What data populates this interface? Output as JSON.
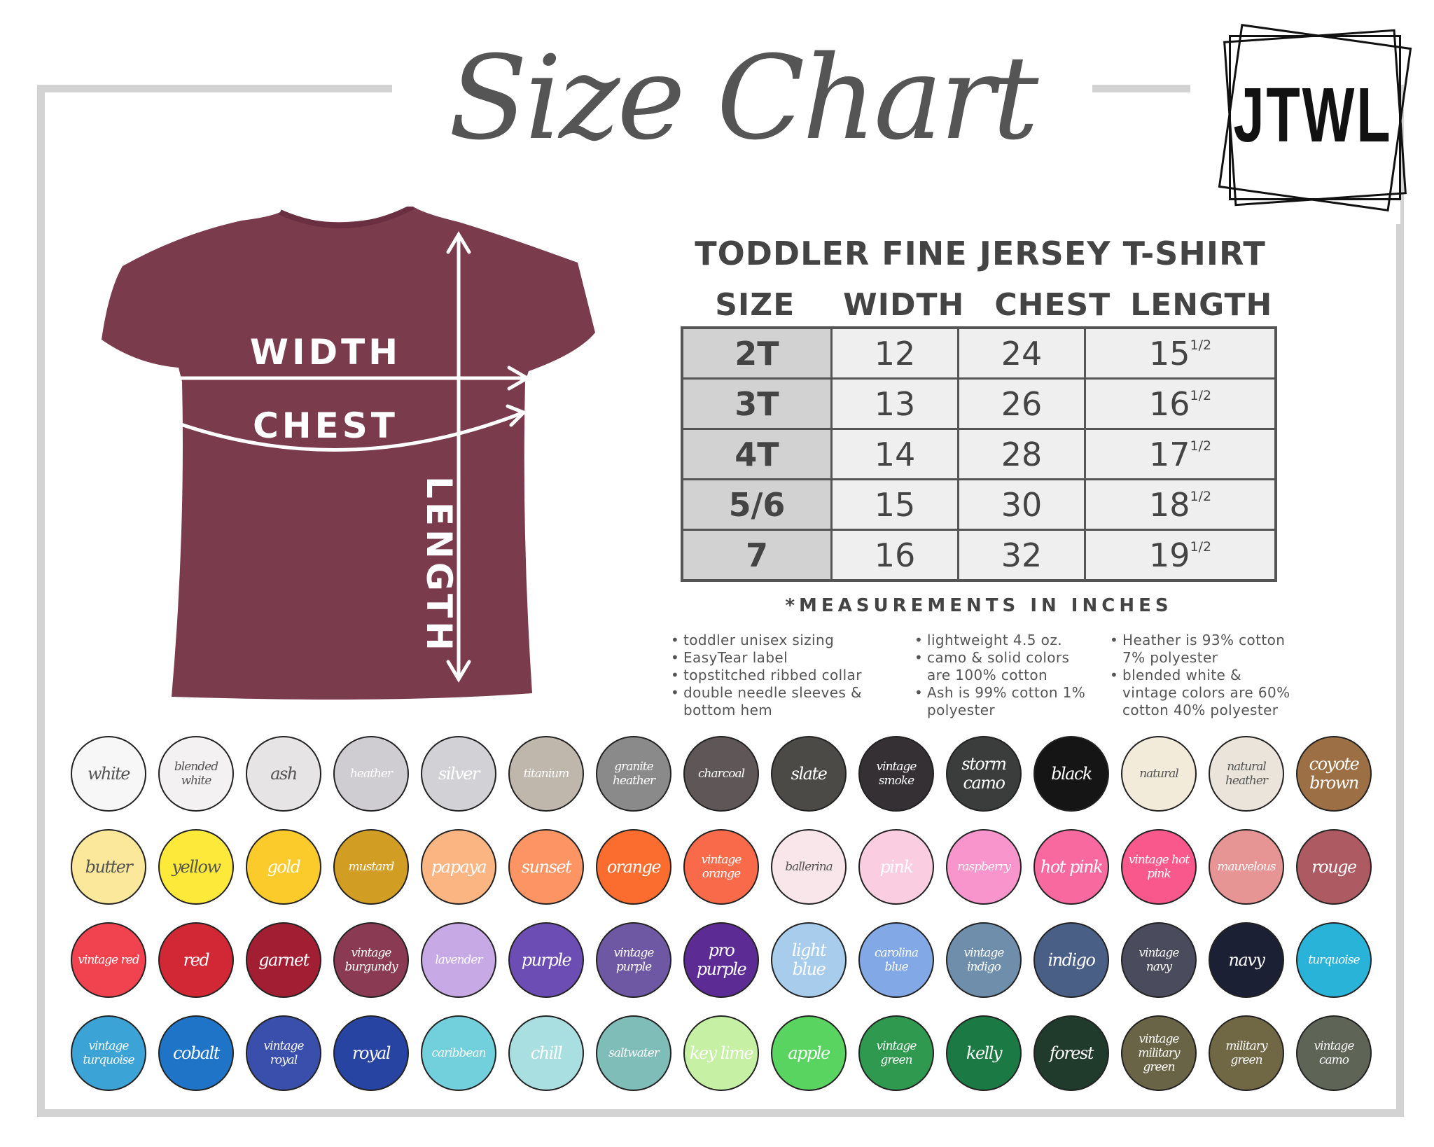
{
  "header": {
    "title": "Size Chart",
    "logo": "JTWL"
  },
  "diagram": {
    "width_label": "WIDTH",
    "chest_label": "CHEST",
    "length_label": "LENGTH",
    "shirt_color": "#7a3b4d"
  },
  "table": {
    "title": "TODDLER FINE JERSEY T-SHIRT",
    "columns": [
      "SIZE",
      "WIDTH",
      "CHEST",
      "LENGTH"
    ],
    "rows": [
      {
        "size": "2T",
        "width": "12",
        "chest": "24",
        "length": "15",
        "length_frac": "1/2"
      },
      {
        "size": "3T",
        "width": "13",
        "chest": "26",
        "length": "16",
        "length_frac": "1/2"
      },
      {
        "size": "4T",
        "width": "14",
        "chest": "28",
        "length": "17",
        "length_frac": "1/2"
      },
      {
        "size": "5/6",
        "width": "15",
        "chest": "30",
        "length": "18",
        "length_frac": "1/2"
      },
      {
        "size": "7",
        "width": "16",
        "chest": "32",
        "length": "19",
        "length_frac": "1/2"
      }
    ],
    "note": "*MEASUREMENTS IN INCHES"
  },
  "features": [
    [
      "toddler unisex sizing",
      "EasyTear label",
      "topstitched ribbed collar",
      "double needle sleeves & bottom hem"
    ],
    [
      "lightweight 4.5 oz.",
      "camo & solid colors are 100% cotton",
      "Ash is 99% cotton 1% polyester"
    ],
    [
      "Heather is 93% cotton 7% polyester",
      "blended white & vintage colors are 60% cotton 40% polyester"
    ]
  ],
  "swatches": [
    {
      "name": "white",
      "color": "#f7f7f7",
      "text": "#555"
    },
    {
      "name": "blended white",
      "color": "#f3f1f1",
      "text": "#555"
    },
    {
      "name": "ash",
      "color": "#e6e4e4",
      "text": "#555"
    },
    {
      "name": "heather",
      "color": "#cfcdd2",
      "text": "#fff"
    },
    {
      "name": "silver",
      "color": "#d2d2d6",
      "text": "#fff"
    },
    {
      "name": "titanium",
      "color": "#bfb6ac",
      "text": "#fff"
    },
    {
      "name": "granite heather",
      "color": "#8a8a8a",
      "text": "#fff"
    },
    {
      "name": "charcoal",
      "color": "#5f5757",
      "text": "#fff"
    },
    {
      "name": "slate",
      "color": "#4c4a47",
      "text": "#fff"
    },
    {
      "name": "vintage smoke",
      "color": "#343034",
      "text": "#fff"
    },
    {
      "name": "storm camo",
      "color": "#3b3d3c",
      "text": "#fff"
    },
    {
      "name": "black",
      "color": "#151515",
      "text": "#fff"
    },
    {
      "name": "natural",
      "color": "#f3ebd9",
      "text": "#555"
    },
    {
      "name": "natural heather",
      "color": "#ebe4da",
      "text": "#555"
    },
    {
      "name": "coyote brown",
      "color": "#9c6f44",
      "text": "#fff"
    },
    {
      "name": "butter",
      "color": "#fbe89a",
      "text": "#555"
    },
    {
      "name": "yellow",
      "color": "#fde93a",
      "text": "#555"
    },
    {
      "name": "gold",
      "color": "#fbcb2c",
      "text": "#fff"
    },
    {
      "name": "mustard",
      "color": "#d19d22",
      "text": "#fff"
    },
    {
      "name": "papaya",
      "color": "#fbb583",
      "text": "#fff"
    },
    {
      "name": "sunset",
      "color": "#fc9463",
      "text": "#fff"
    },
    {
      "name": "orange",
      "color": "#fb6c2f",
      "text": "#fff"
    },
    {
      "name": "vintage orange",
      "color": "#f86a4a",
      "text": "#fff"
    },
    {
      "name": "ballerina",
      "color": "#f8e6ea",
      "text": "#555"
    },
    {
      "name": "pink",
      "color": "#fbcde0",
      "text": "#fff"
    },
    {
      "name": "raspberry",
      "color": "#f895cc",
      "text": "#fff"
    },
    {
      "name": "hot pink",
      "color": "#f86a9f",
      "text": "#fff"
    },
    {
      "name": "vintage hot pink",
      "color": "#f8588b",
      "text": "#fff"
    },
    {
      "name": "mauvelous",
      "color": "#e79594",
      "text": "#fff"
    },
    {
      "name": "rouge",
      "color": "#ad5a62",
      "text": "#fff"
    },
    {
      "name": "vintage red",
      "color": "#f0434f",
      "text": "#fff"
    },
    {
      "name": "red",
      "color": "#d22836",
      "text": "#fff"
    },
    {
      "name": "garnet",
      "color": "#a11e33",
      "text": "#fff"
    },
    {
      "name": "vintage burgundy",
      "color": "#8a3a52",
      "text": "#fff"
    },
    {
      "name": "lavender",
      "color": "#c7a9e6",
      "text": "#fff"
    },
    {
      "name": "purple",
      "color": "#6b4db3",
      "text": "#fff"
    },
    {
      "name": "vintage purple",
      "color": "#6e58a3",
      "text": "#fff"
    },
    {
      "name": "pro purple",
      "color": "#5c2b93",
      "text": "#fff"
    },
    {
      "name": "light blue",
      "color": "#a8cdec",
      "text": "#fff"
    },
    {
      "name": "carolina blue",
      "color": "#82a9e6",
      "text": "#fff"
    },
    {
      "name": "vintage indigo",
      "color": "#6f8eab",
      "text": "#fff"
    },
    {
      "name": "indigo",
      "color": "#4a5f86",
      "text": "#fff"
    },
    {
      "name": "vintage navy",
      "color": "#4a4b5c",
      "text": "#fff"
    },
    {
      "name": "navy",
      "color": "#1c2034",
      "text": "#fff"
    },
    {
      "name": "turquoise",
      "color": "#2ab3d8",
      "text": "#fff"
    },
    {
      "name": "vintage turquoise",
      "color": "#3ba3d6",
      "text": "#fff"
    },
    {
      "name": "cobalt",
      "color": "#1f74c7",
      "text": "#fff"
    },
    {
      "name": "vintage royal",
      "color": "#3a4fac",
      "text": "#fff"
    },
    {
      "name": "royal",
      "color": "#2844a3",
      "text": "#fff"
    },
    {
      "name": "caribbean",
      "color": "#72cfdc",
      "text": "#fff"
    },
    {
      "name": "chill",
      "color": "#a9dfe0",
      "text": "#fff"
    },
    {
      "name": "saltwater",
      "color": "#7fbdb8",
      "text": "#fff"
    },
    {
      "name": "key lime",
      "color": "#c6f0a4",
      "text": "#fff"
    },
    {
      "name": "apple",
      "color": "#5ad460",
      "text": "#fff"
    },
    {
      "name": "vintage green",
      "color": "#2f9a4f",
      "text": "#fff"
    },
    {
      "name": "kelly",
      "color": "#1b7a43",
      "text": "#fff"
    },
    {
      "name": "forest",
      "color": "#203b2c",
      "text": "#fff"
    },
    {
      "name": "vintage military green",
      "color": "#6a6446",
      "text": "#fff"
    },
    {
      "name": "military green",
      "color": "#706845",
      "text": "#fff"
    },
    {
      "name": "vintage camo",
      "color": "#5e6456",
      "text": "#fff"
    }
  ]
}
